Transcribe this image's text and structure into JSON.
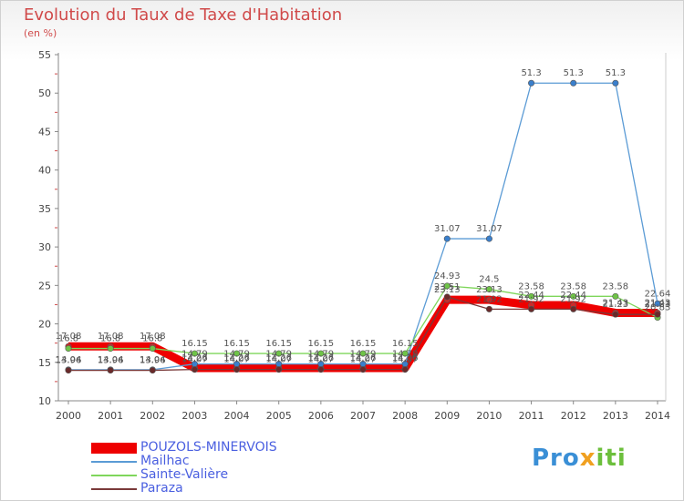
{
  "header": {
    "title": "Evolution du Taux de Taxe d'Habitation",
    "unit": "(en %)"
  },
  "logo": {
    "text": "Proxiti",
    "colors": [
      "#3a8fd6",
      "#f0a020",
      "#6cbf3c"
    ]
  },
  "chart_data": {
    "type": "line",
    "title": "Evolution du Taux de Taxe d'Habitation",
    "ylabel": "(en %)",
    "ylim": [
      10,
      55
    ],
    "yticks": [
      10,
      15,
      20,
      25,
      30,
      35,
      40,
      45,
      50,
      55
    ],
    "categories": [
      "2000",
      "2001",
      "2002",
      "2003",
      "2004",
      "2005",
      "2006",
      "2007",
      "2008",
      "2009",
      "2010",
      "2011",
      "2012",
      "2013",
      "2014"
    ],
    "grid": false,
    "legend_position": "bottom-left",
    "series": [
      {
        "name": "POUZOLS-MINERVOIS",
        "color": "#ee0000",
        "values": [
          17.08,
          17.08,
          17.08,
          14.26,
          14.26,
          14.26,
          14.26,
          14.26,
          14.26,
          23.13,
          23.13,
          22.44,
          22.44,
          21.43,
          21.43
        ]
      },
      {
        "name": "Mailhac",
        "color": "#5b9bd5",
        "values": [
          14.04,
          14.04,
          14.04,
          14.79,
          14.79,
          14.79,
          14.79,
          14.79,
          14.79,
          31.07,
          31.07,
          51.3,
          51.3,
          51.3,
          22.64
        ]
      },
      {
        "name": "Sainte-Valière",
        "color": "#7fd65b",
        "values": [
          16.8,
          16.8,
          16.8,
          16.15,
          16.15,
          16.15,
          16.15,
          16.15,
          16.15,
          24.93,
          24.5,
          23.58,
          23.58,
          23.58,
          20.83
        ]
      },
      {
        "name": "Paraza",
        "color": "#7a3a3a",
        "values": [
          13.96,
          13.96,
          13.96,
          14.07,
          14.07,
          14.07,
          14.07,
          14.07,
          14.07,
          23.51,
          21.92,
          21.92,
          21.92,
          21.23,
          21.23
        ]
      }
    ]
  }
}
